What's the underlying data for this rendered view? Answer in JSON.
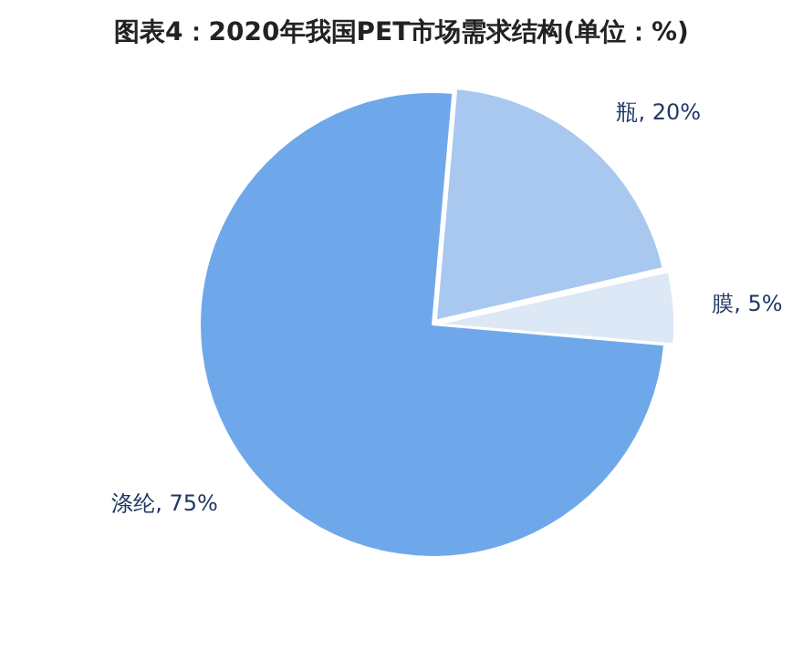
{
  "chart_data": {
    "type": "pie",
    "title": "图表4：2020年我国PET市场需求结构(单位：%)",
    "categories": [
      "瓶",
      "膜",
      "涤纶"
    ],
    "values": [
      20,
      5,
      75
    ],
    "value_labels": [
      "20%",
      "5%",
      "75%"
    ],
    "colors": [
      "#a9c8ef",
      "#dde8f6",
      "#6fa8ea"
    ],
    "legend": false
  }
}
